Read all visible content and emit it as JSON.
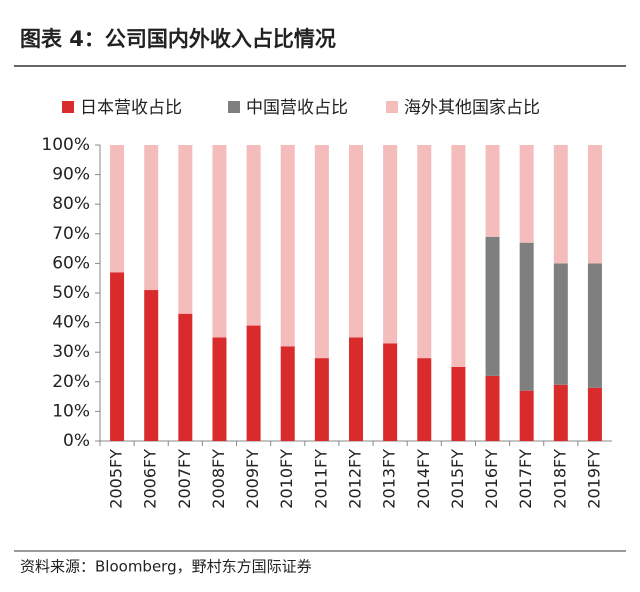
{
  "chart_data": {
    "type": "stacked-bar",
    "title": "图表 4：公司国内外收入占比情况",
    "source": "资料来源：Bloomberg，野村东方国际证券",
    "categories": [
      "2005FY",
      "2006FY",
      "2007FY",
      "2008FY",
      "2009FY",
      "2010FY",
      "2011FY",
      "2012FY",
      "2013FY",
      "2014FY",
      "2015FY",
      "2016FY",
      "2017FY",
      "2018FY",
      "2019FY"
    ],
    "series": [
      {
        "name": "日本营收占比",
        "color": "#d92b2b",
        "values": [
          57,
          51,
          43,
          35,
          39,
          32,
          28,
          35,
          33,
          28,
          25,
          22,
          17,
          19,
          18
        ]
      },
      {
        "name": "中国营收占比",
        "color": "#7f7f7f",
        "values": [
          null,
          null,
          null,
          null,
          null,
          null,
          null,
          null,
          null,
          null,
          null,
          47,
          50,
          41,
          42
        ]
      },
      {
        "name": "海外其他国家占比",
        "color": "#f5bcbc",
        "values": [
          43,
          49,
          57,
          65,
          61,
          68,
          72,
          65,
          67,
          72,
          75,
          31,
          33,
          40,
          40
        ]
      }
    ],
    "ylim": [
      0,
      100
    ],
    "yticks": [
      {
        "value": 0,
        "label": "0%"
      },
      {
        "value": 10,
        "label": "10%"
      },
      {
        "value": 20,
        "label": "20%"
      },
      {
        "value": 30,
        "label": "30%"
      },
      {
        "value": 40,
        "label": "40%"
      },
      {
        "value": 50,
        "label": "50%"
      },
      {
        "value": 60,
        "label": "60%"
      },
      {
        "value": 70,
        "label": "70%"
      },
      {
        "value": 80,
        "label": "80%"
      },
      {
        "value": 90,
        "label": "90%"
      },
      {
        "value": 100,
        "label": "100%"
      }
    ]
  }
}
